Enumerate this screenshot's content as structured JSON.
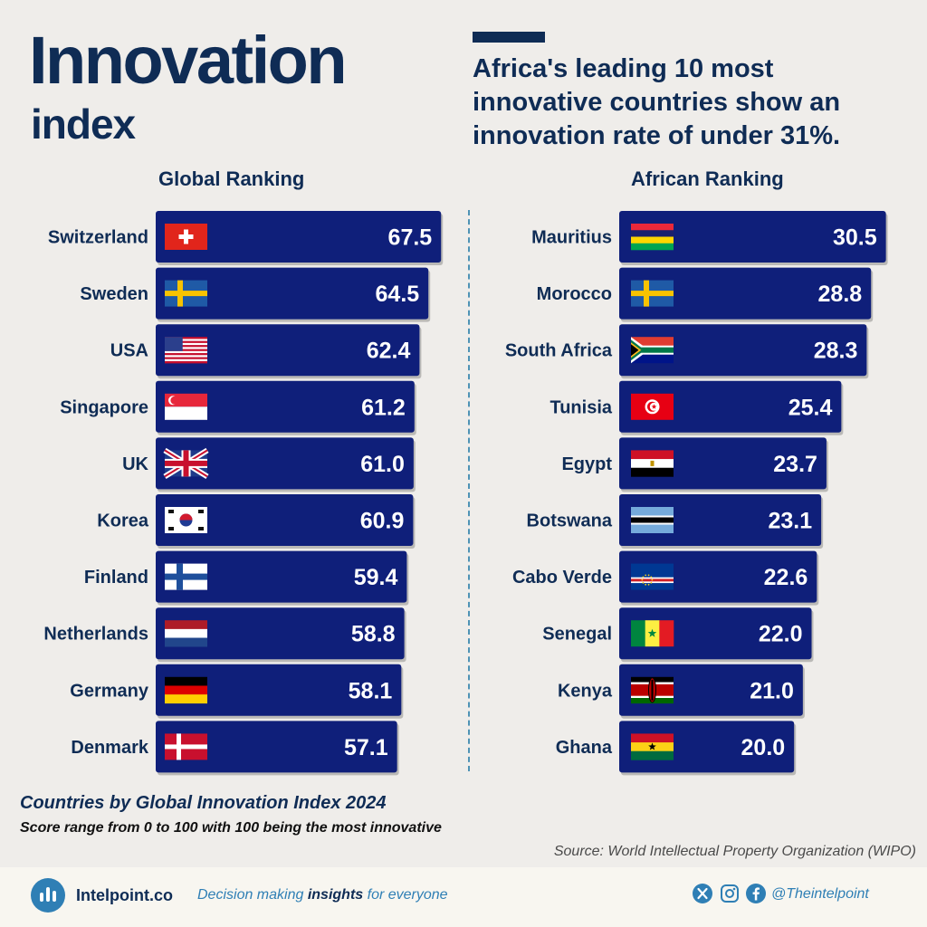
{
  "header": {
    "title_main": "Innovation",
    "title_sub": "index",
    "subtitle": "Africa's leading 10 most innovative countries show an innovation rate of under 31%."
  },
  "chart_data": [
    {
      "type": "bar",
      "title": "Global Ranking",
      "orientation": "horizontal",
      "categories": [
        "Switzerland",
        "Sweden",
        "USA",
        "Singapore",
        "UK",
        "Korea",
        "Finland",
        "Netherlands",
        "Germany",
        "Denmark"
      ],
      "values": [
        67.5,
        64.5,
        62.4,
        61.2,
        61.0,
        60.9,
        59.4,
        58.8,
        58.1,
        57.1
      ],
      "value_labels": [
        "67.5",
        "64.5",
        "62.4",
        "61.2",
        "61.0",
        "60.9",
        "59.4",
        "58.8",
        "58.1",
        "57.1"
      ],
      "flags": [
        "ch",
        "se",
        "us",
        "sg",
        "uk",
        "kr",
        "fi",
        "nl",
        "de",
        "dk"
      ]
    },
    {
      "type": "bar",
      "title": "African Ranking",
      "orientation": "horizontal",
      "categories": [
        "Mauritius",
        "Morocco",
        "South Africa",
        "Tunisia",
        "Egypt",
        "Botswana",
        "Cabo Verde",
        "Senegal",
        "Kenya",
        "Ghana"
      ],
      "values": [
        30.5,
        28.8,
        28.3,
        25.4,
        23.7,
        23.1,
        22.6,
        22.0,
        21.0,
        20.0
      ],
      "value_labels": [
        "30.5",
        "28.8",
        "28.3",
        "25.4",
        "23.7",
        "23.1",
        "22.6",
        "22.0",
        "21.0",
        "20.0"
      ],
      "flags": [
        "mu",
        "se",
        "za",
        "tn",
        "eg",
        "bw",
        "cv",
        "sn",
        "ke",
        "gh"
      ]
    }
  ],
  "footer": {
    "title": "Countries by Global Innovation Index 2024",
    "note": "Score range from 0 to 100 with 100 being the most innovative",
    "source": "Source: World Intellectual Property Organization (WIPO)"
  },
  "bottom_bar": {
    "brand": "Intelpoint.co",
    "tagline_pre": "Decision making ",
    "tagline_bold": "insights",
    "tagline_post": " for everyone",
    "handle": "@Theintelpoint",
    "icons": [
      "x-icon",
      "instagram-icon",
      "facebook-icon"
    ]
  },
  "colors": {
    "navy": "#0f2c55",
    "bar": "#0f1f7a",
    "accent": "#2f7fb5",
    "background": "#efedea"
  }
}
